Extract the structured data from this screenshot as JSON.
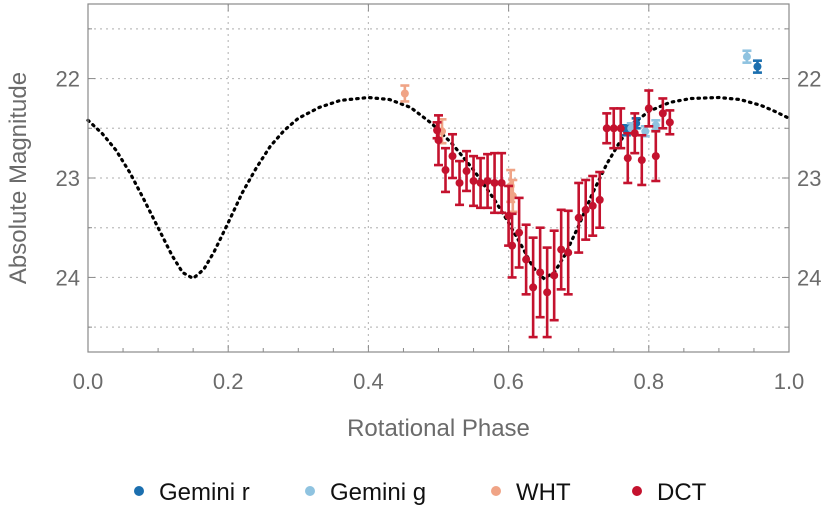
{
  "chart_data": {
    "type": "scatter",
    "xlabel": "Rotational Phase",
    "ylabel": "Absolute Magnitude",
    "xlim": [
      0,
      1
    ],
    "ylim": [
      24.75,
      21.25
    ],
    "y_inverted": true,
    "grid": true,
    "legend_position": "bottom",
    "x_ticks": [
      "0.0",
      "0.2",
      "0.4",
      "0.6",
      "0.8",
      "1.0"
    ],
    "y_ticks": [
      "22",
      "23",
      "24"
    ],
    "model_curve": {
      "style": "dotted",
      "color": "#000000",
      "points": [
        [
          0.0,
          22.42
        ],
        [
          0.02,
          22.55
        ],
        [
          0.04,
          22.72
        ],
        [
          0.06,
          22.95
        ],
        [
          0.08,
          23.22
        ],
        [
          0.1,
          23.5
        ],
        [
          0.12,
          23.78
        ],
        [
          0.135,
          23.95
        ],
        [
          0.15,
          24.01
        ],
        [
          0.165,
          23.92
        ],
        [
          0.18,
          23.74
        ],
        [
          0.2,
          23.45
        ],
        [
          0.22,
          23.15
        ],
        [
          0.24,
          22.9
        ],
        [
          0.26,
          22.68
        ],
        [
          0.28,
          22.52
        ],
        [
          0.3,
          22.4
        ],
        [
          0.33,
          22.29
        ],
        [
          0.36,
          22.22
        ],
        [
          0.4,
          22.19
        ],
        [
          0.43,
          22.21
        ],
        [
          0.46,
          22.29
        ],
        [
          0.49,
          22.45
        ],
        [
          0.52,
          22.66
        ],
        [
          0.55,
          22.92
        ],
        [
          0.58,
          23.22
        ],
        [
          0.6,
          23.45
        ],
        [
          0.62,
          23.7
        ],
        [
          0.635,
          23.9
        ],
        [
          0.65,
          24.01
        ],
        [
          0.665,
          23.95
        ],
        [
          0.68,
          23.78
        ],
        [
          0.7,
          23.48
        ],
        [
          0.72,
          23.15
        ],
        [
          0.74,
          22.86
        ],
        [
          0.76,
          22.62
        ],
        [
          0.78,
          22.44
        ],
        [
          0.8,
          22.33
        ],
        [
          0.83,
          22.24
        ],
        [
          0.86,
          22.2
        ],
        [
          0.9,
          22.19
        ],
        [
          0.93,
          22.21
        ],
        [
          0.96,
          22.27
        ],
        [
          0.98,
          22.33
        ],
        [
          1.0,
          22.4
        ]
      ]
    },
    "series": [
      {
        "name": "Gemini r",
        "color": "#1b6faf",
        "points": [
          {
            "x": 0.768,
            "y": 22.52,
            "err": 0.05
          },
          {
            "x": 0.782,
            "y": 22.45,
            "err": 0.05
          },
          {
            "x": 0.955,
            "y": 21.88,
            "err": 0.06
          }
        ]
      },
      {
        "name": "Gemini g",
        "color": "#8fc3e0",
        "points": [
          {
            "x": 0.775,
            "y": 22.5,
            "err": 0.05
          },
          {
            "x": 0.795,
            "y": 22.53,
            "err": 0.05
          },
          {
            "x": 0.81,
            "y": 22.47,
            "err": 0.05
          },
          {
            "x": 0.94,
            "y": 21.78,
            "err": 0.06
          }
        ]
      },
      {
        "name": "WHT",
        "color": "#f0a486",
        "points": [
          {
            "x": 0.452,
            "y": 22.15,
            "err": 0.08
          },
          {
            "x": 0.505,
            "y": 22.53,
            "err": 0.12
          },
          {
            "x": 0.603,
            "y": 23.08,
            "err": 0.16
          },
          {
            "x": 0.606,
            "y": 23.18,
            "err": 0.16
          }
        ]
      },
      {
        "name": "DCT",
        "color": "#c4122e",
        "points": [
          {
            "x": 0.498,
            "y": 22.52,
            "err": 0.08
          },
          {
            "x": 0.5,
            "y": 22.62,
            "err": 0.25
          },
          {
            "x": 0.51,
            "y": 22.92,
            "err": 0.22
          },
          {
            "x": 0.52,
            "y": 22.78,
            "err": 0.22
          },
          {
            "x": 0.53,
            "y": 23.05,
            "err": 0.22
          },
          {
            "x": 0.54,
            "y": 22.93,
            "err": 0.2
          },
          {
            "x": 0.55,
            "y": 23.03,
            "err": 0.25
          },
          {
            "x": 0.56,
            "y": 23.05,
            "err": 0.25
          },
          {
            "x": 0.57,
            "y": 23.03,
            "err": 0.27
          },
          {
            "x": 0.58,
            "y": 23.05,
            "err": 0.3
          },
          {
            "x": 0.59,
            "y": 23.05,
            "err": 0.3
          },
          {
            "x": 0.6,
            "y": 23.38,
            "err": 0.3
          },
          {
            "x": 0.605,
            "y": 23.68,
            "err": 0.32
          },
          {
            "x": 0.615,
            "y": 23.55,
            "err": 0.35
          },
          {
            "x": 0.625,
            "y": 23.82,
            "err": 0.35
          },
          {
            "x": 0.635,
            "y": 24.1,
            "err": 0.5
          },
          {
            "x": 0.645,
            "y": 23.95,
            "err": 0.45
          },
          {
            "x": 0.655,
            "y": 24.15,
            "err": 0.45
          },
          {
            "x": 0.665,
            "y": 23.98,
            "err": 0.45
          },
          {
            "x": 0.675,
            "y": 23.72,
            "err": 0.4
          },
          {
            "x": 0.685,
            "y": 23.75,
            "err": 0.42
          },
          {
            "x": 0.7,
            "y": 23.4,
            "err": 0.35
          },
          {
            "x": 0.71,
            "y": 23.32,
            "err": 0.3
          },
          {
            "x": 0.72,
            "y": 23.28,
            "err": 0.3
          },
          {
            "x": 0.73,
            "y": 23.22,
            "err": 0.28
          },
          {
            "x": 0.74,
            "y": 22.5,
            "err": 0.15
          },
          {
            "x": 0.75,
            "y": 22.5,
            "err": 0.2
          },
          {
            "x": 0.76,
            "y": 22.5,
            "err": 0.2
          },
          {
            "x": 0.77,
            "y": 22.8,
            "err": 0.25
          },
          {
            "x": 0.78,
            "y": 22.55,
            "err": 0.2
          },
          {
            "x": 0.79,
            "y": 22.82,
            "err": 0.25
          },
          {
            "x": 0.8,
            "y": 22.3,
            "err": 0.18
          },
          {
            "x": 0.81,
            "y": 22.78,
            "err": 0.25
          },
          {
            "x": 0.82,
            "y": 22.35,
            "err": 0.15
          },
          {
            "x": 0.83,
            "y": 22.44,
            "err": 0.12
          }
        ]
      }
    ]
  }
}
